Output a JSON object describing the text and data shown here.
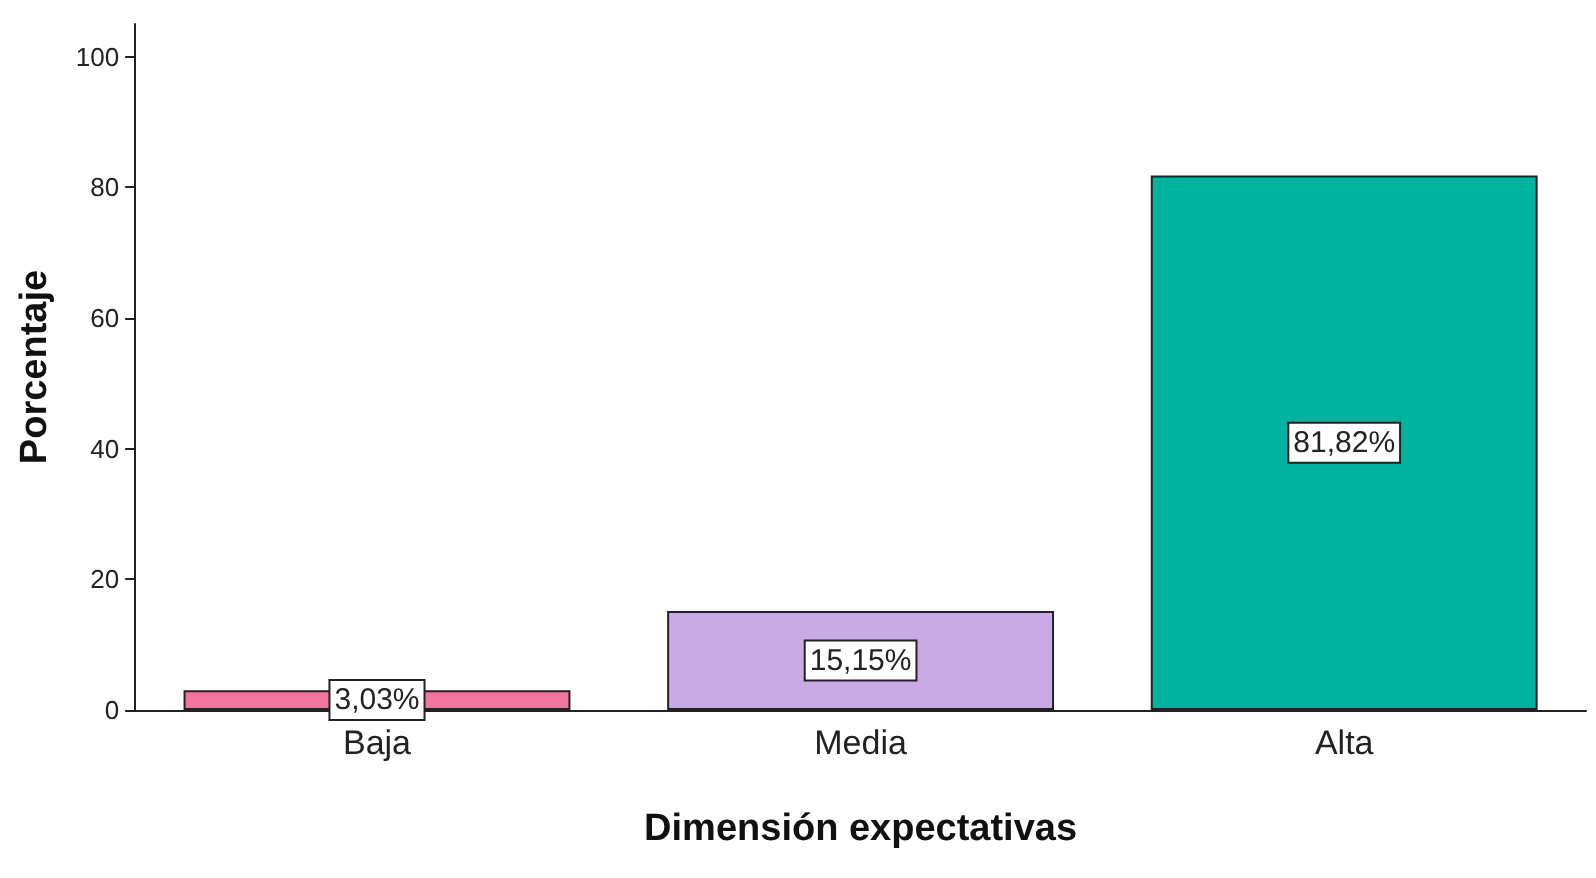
{
  "chart_data": {
    "type": "bar",
    "xlabel": "Dimensión expectativas",
    "ylabel": "Porcentaje",
    "categories": [
      "Baja",
      "Media",
      "Alta"
    ],
    "values": [
      3.03,
      15.15,
      81.82
    ],
    "colors": [
      "#f2769f",
      "#c9a9e6",
      "#00b3a0"
    ],
    "value_labels": [
      "3,03%",
      "15,15%",
      "81,82%"
    ],
    "ylim": [
      0,
      105
    ],
    "yticks": [
      0,
      20,
      40,
      60,
      80,
      100
    ],
    "grid": false
  }
}
